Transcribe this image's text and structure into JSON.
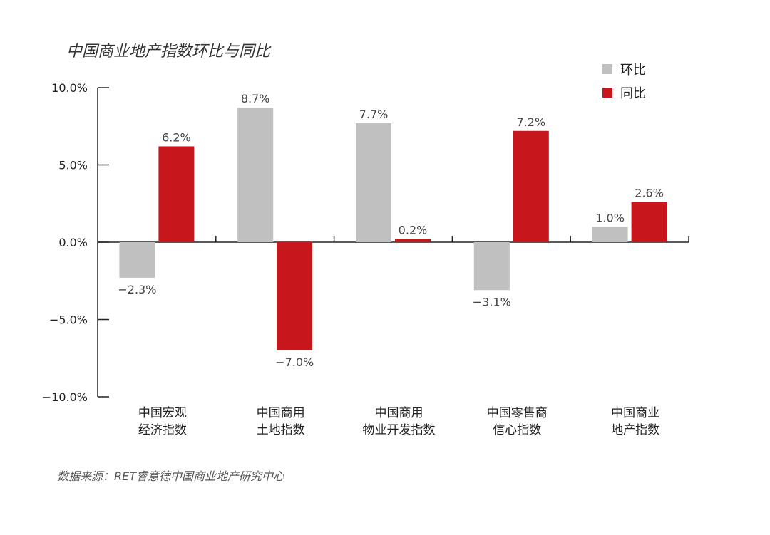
{
  "chart_data": {
    "type": "bar",
    "title": "中国商业地产指数环比与同比",
    "source": "数据来源：RET睿意德中国商业地产研究中心",
    "categories": [
      [
        "中国宏观",
        "经济指数"
      ],
      [
        "中国商用",
        "土地指数"
      ],
      [
        "中国商用",
        "物业开发指数"
      ],
      [
        "中国零售商",
        "信心指数"
      ],
      [
        "中国商业",
        "地产指数"
      ]
    ],
    "series": [
      {
        "name": "环比",
        "color": "#c0c0c0",
        "values": [
          -2.3,
          8.7,
          7.7,
          -3.1,
          1.0
        ],
        "labels": [
          "−2.3%",
          "8.7%",
          "7.7%",
          "−3.1%",
          "1.0%"
        ]
      },
      {
        "name": "同比",
        "color": "#c8161d",
        "values": [
          6.2,
          -7.0,
          0.2,
          7.2,
          2.6
        ],
        "labels": [
          "6.2%",
          "−7.0%",
          "0.2%",
          "7.2%",
          "2.6%"
        ]
      }
    ],
    "ylim": [
      -10,
      10
    ],
    "yticks": [
      10,
      5,
      0,
      -5,
      -10
    ],
    "ytick_labels": [
      "10.0%",
      "5.0%",
      "0.0%",
      "−5.0%",
      "−10.0%"
    ],
    "legend": "top-right",
    "grid": false
  }
}
